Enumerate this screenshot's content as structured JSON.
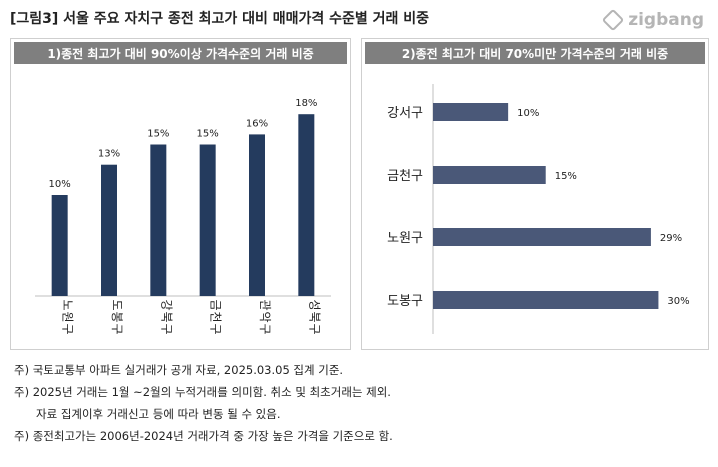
{
  "title": "[그림3] 서울 주요 자치구  종전 최고가 대비 매매가격 수준별 거래 비중",
  "logo": {
    "text": "zigbang",
    "icon": "zigbang-logo-icon",
    "color": "#b5b5b5"
  },
  "chart_data": [
    {
      "type": "bar",
      "title": "1)종전 최고가 대비 90%이상 가격수준의 거래 비중",
      "categories": [
        "노원구",
        "도봉구",
        "강북구",
        "금천구",
        "관악구",
        "성북구"
      ],
      "values": [
        10,
        13,
        15,
        15,
        16,
        18
      ],
      "value_suffix": "%",
      "ylim": [
        0,
        20
      ],
      "grid": false,
      "bar_color": "#243b5e"
    },
    {
      "type": "bar",
      "orientation": "horizontal",
      "title": "2)종전 최고가 대비 70%미만 가격수준의 거래 비중",
      "categories": [
        "강서구",
        "금천구",
        "노원구",
        "도봉구"
      ],
      "values": [
        10,
        15,
        29,
        30
      ],
      "value_suffix": "%",
      "xlim": [
        0,
        35
      ],
      "grid": false,
      "bar_color": "#4a5878"
    }
  ],
  "footnotes": [
    "주) 국토교통부 아파트 실거래가 공개 자료, 2025.03.05 집계 기준.",
    "주) 2025년 거래는 1월 ~2월의 누적거래를 의미함. 취소 및 최초거래는 제외.",
    "자료 집계이후 거래신고 등에 따라 변동 될 수 있음.",
    "주) 종전최고가는 2006년-2024년 거래가격 중 가장 높은 가격을 기준으로 함."
  ]
}
